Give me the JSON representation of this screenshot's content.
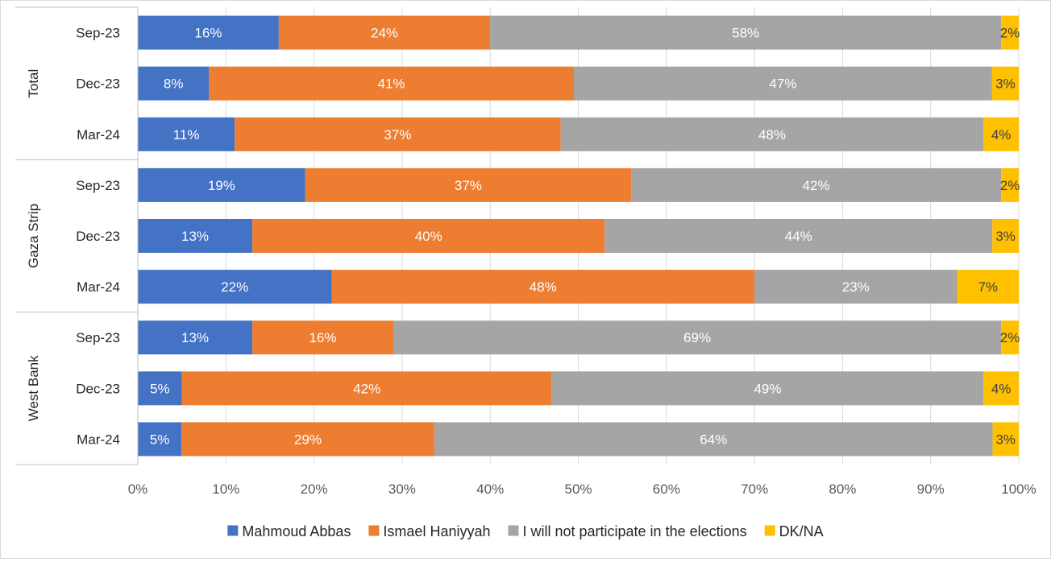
{
  "chart_data": {
    "type": "bar",
    "orientation": "horizontal",
    "stacked": true,
    "percent_stacked": true,
    "groups": [
      {
        "name": "Total",
        "categories": [
          "Sep-23",
          "Dec-23",
          "Mar-24"
        ]
      },
      {
        "name": "Gaza Strip",
        "categories": [
          "Sep-23",
          "Dec-23",
          "Mar-24"
        ]
      },
      {
        "name": "West Bank",
        "categories": [
          "Sep-23",
          "Dec-23",
          "Mar-24"
        ]
      }
    ],
    "series": [
      {
        "name": "Mahmoud Abbas",
        "color": "#4472C4",
        "label_color": "#ffffff",
        "values": [
          16,
          8,
          11,
          19,
          13,
          22,
          13,
          5,
          5
        ],
        "labels": [
          "16%",
          "8%",
          "11%",
          "19%",
          "13%",
          "22%",
          "13%",
          "5%",
          "5%"
        ]
      },
      {
        "name": "Ismael Haniyyah",
        "color": "#ED7D31",
        "label_color": "#ffffff",
        "values": [
          24,
          41,
          37,
          37,
          40,
          48,
          16,
          42,
          29
        ],
        "labels": [
          "24%",
          "41%",
          "37%",
          "37%",
          "40%",
          "48%",
          "16%",
          "42%",
          "29%"
        ]
      },
      {
        "name": "I will not participate in the elections",
        "color": "#A5A5A5",
        "label_color": "#ffffff",
        "values": [
          58,
          47,
          48,
          42,
          44,
          23,
          69,
          49,
          64
        ],
        "labels": [
          "58%",
          "47%",
          "48%",
          "42%",
          "44%",
          "23%",
          "69%",
          "49%",
          "64%"
        ]
      },
      {
        "name": "DK/NA",
        "color": "#FFC000",
        "label_color": "#404040",
        "values": [
          2,
          3,
          4,
          2,
          3,
          7,
          2,
          4,
          3
        ],
        "labels": [
          "2%",
          "3%",
          "4%",
          "2%",
          "3%",
          "7%",
          "2%",
          "4%",
          "3%"
        ]
      }
    ],
    "x_ticks": [
      "0%",
      "10%",
      "20%",
      "30%",
      "40%",
      "50%",
      "60%",
      "70%",
      "80%",
      "90%",
      "100%"
    ],
    "xlim": [
      0,
      100
    ],
    "grid": true,
    "legend_position": "bottom"
  }
}
